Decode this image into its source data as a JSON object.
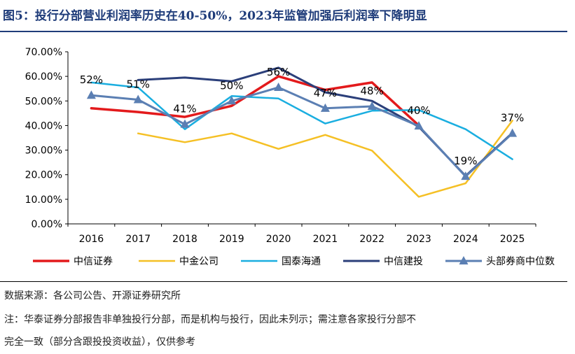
{
  "title": "图5：投行分部营业利润率历史在40-50%，2023年监管加强后利润率下降明显",
  "source": "数据来源：各公司公告、开源证券研究所",
  "note_line1": "注：华泰证券分部报告非单独投行分部，而是机构与投行，因此未列示；需注意各家投行分部不",
  "note_line2": "完全一致（部分含跟投投资收益），仅供参考",
  "chart_data": {
    "type": "line",
    "categories": [
      "2016",
      "2017",
      "2018",
      "2019",
      "2020",
      "2021",
      "2022",
      "2023",
      "2024",
      "2025"
    ],
    "ylim": [
      0,
      70
    ],
    "yticks": [
      "0.00%",
      "10.00%",
      "20.00%",
      "30.00%",
      "40.00%",
      "50.00%",
      "60.00%",
      "70.00%"
    ],
    "grid": false,
    "legend": "bottom",
    "series": [
      {
        "name": "中信证券",
        "color": "#e31a1c",
        "width": 3.5,
        "marker": "none",
        "values": [
          47,
          45.5,
          43.5,
          48,
          60,
          54.5,
          57.5,
          40,
          null,
          null
        ]
      },
      {
        "name": "中金公司",
        "color": "#f5c025",
        "width": 2.5,
        "marker": "none",
        "values": [
          null,
          36.8,
          33.2,
          36.8,
          30.5,
          36.2,
          29.8,
          11,
          16.5,
          42
        ]
      },
      {
        "name": "国泰海通",
        "color": "#1aaee0",
        "width": 2.5,
        "marker": "none",
        "values": [
          57.5,
          55.5,
          38.5,
          52,
          51,
          40.8,
          46,
          46.3,
          38.5,
          26.3
        ]
      },
      {
        "name": "中信建投",
        "color": "#2b3f7a",
        "width": 3,
        "marker": "none",
        "values": [
          null,
          58.5,
          59.5,
          58,
          63.5,
          53.5,
          50,
          39.5,
          19.5,
          37
        ]
      },
      {
        "name": "头部券商中位数",
        "color": "#5b7fb3",
        "width": 3,
        "marker": "triangle",
        "values": [
          52.3,
          50.5,
          40.5,
          50,
          55.5,
          47,
          47.8,
          39.8,
          19.3,
          36.8
        ],
        "labels": [
          "52%",
          "51%",
          "41%",
          "50%",
          "56%",
          "47%",
          "48%",
          "40%",
          "19%",
          "37%"
        ]
      }
    ]
  }
}
